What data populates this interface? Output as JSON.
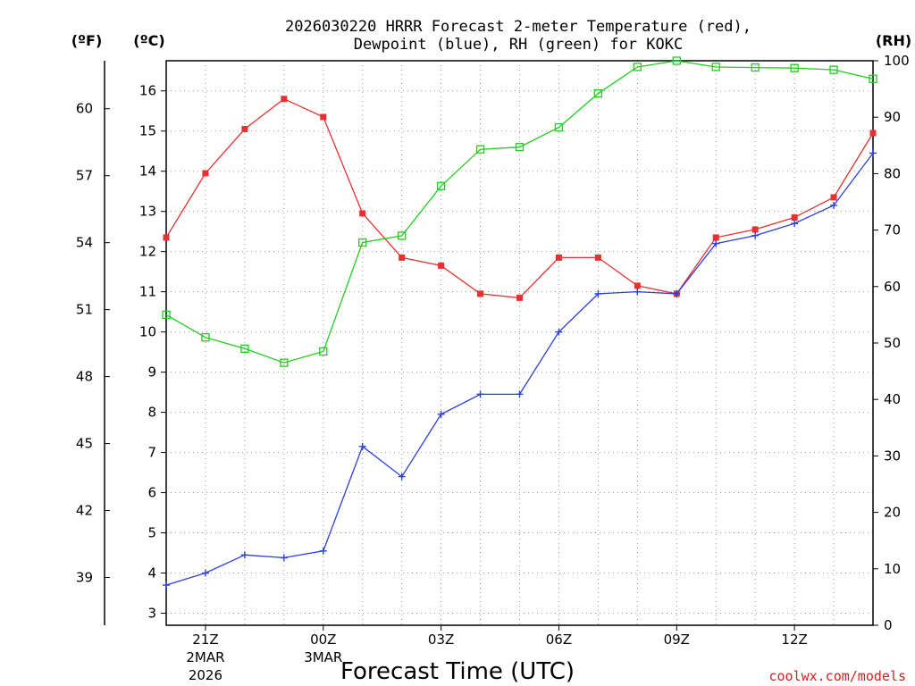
{
  "chart_data": {
    "type": "line",
    "title": "2026030220 HRRR Forecast 2-meter Temperature (red),",
    "subtitle": "Dewpoint (blue), RH (green) for KOKC",
    "xlabel": "Forecast Time (UTC)",
    "credit": "coolwx.com/models",
    "units": {
      "left_outer": "(ºF)",
      "left_inner": "(ºC)",
      "right": "(RH)"
    },
    "x": [
      "20Z",
      "21Z",
      "22Z",
      "23Z",
      "00Z",
      "01Z",
      "02Z",
      "03Z",
      "04Z",
      "05Z",
      "06Z",
      "07Z",
      "08Z",
      "09Z",
      "10Z",
      "11Z",
      "12Z",
      "13Z",
      "14Z"
    ],
    "x_ticks": [
      {
        "label": "21Z",
        "sub1": "2MAR",
        "sub2": "2026"
      },
      {
        "label": "00Z",
        "sub1": "3MAR",
        "sub2": ""
      },
      {
        "label": "03Z",
        "sub1": "",
        "sub2": ""
      },
      {
        "label": "06Z",
        "sub1": "",
        "sub2": ""
      },
      {
        "label": "09Z",
        "sub1": "",
        "sub2": ""
      },
      {
        "label": "12Z",
        "sub1": "",
        "sub2": ""
      }
    ],
    "x_tick_index": [
      1,
      4,
      7,
      10,
      13,
      16
    ],
    "celsius_ticks": [
      "3",
      "4",
      "5",
      "6",
      "7",
      "8",
      "9",
      "10",
      "11",
      "12",
      "13",
      "14",
      "15",
      "16"
    ],
    "fahrenheit_ticks": [
      "39",
      "42",
      "45",
      "48",
      "51",
      "54",
      "57",
      "60"
    ],
    "rh_ticks": [
      "0",
      "10",
      "20",
      "30",
      "40",
      "50",
      "60",
      "70",
      "80",
      "90",
      "100"
    ],
    "ylim_c": [
      2.7,
      16.75
    ],
    "ylim_rh": [
      0,
      100
    ],
    "grid": true,
    "colors": {
      "temperature": "#e83030",
      "dewpoint": "#2b3fe0",
      "rh": "#22cc22"
    },
    "series": [
      {
        "name": "Temperature",
        "axis": "C",
        "marker": "filled-square",
        "values": [
          12.35,
          13.95,
          15.05,
          15.8,
          15.35,
          12.95,
          11.85,
          11.65,
          10.95,
          10.85,
          11.85,
          11.85,
          11.15,
          10.95,
          12.35,
          12.55,
          12.85,
          13.35,
          14.95
        ]
      },
      {
        "name": "Dewpoint",
        "axis": "C",
        "marker": "plus",
        "values": [
          3.7,
          4.0,
          4.45,
          4.38,
          4.55,
          7.15,
          6.4,
          7.95,
          8.45,
          8.45,
          10.0,
          10.95,
          11.0,
          10.95,
          12.2,
          12.4,
          12.7,
          13.15,
          14.45
        ]
      },
      {
        "name": "RH",
        "axis": "RH",
        "marker": "open-square",
        "values": [
          55,
          51,
          49,
          46.5,
          48.5,
          67.8,
          69,
          77.8,
          84.3,
          84.7,
          88.2,
          94.2,
          98.9,
          100,
          98.9,
          98.8,
          98.7,
          98.4,
          96.8
        ]
      }
    ]
  }
}
